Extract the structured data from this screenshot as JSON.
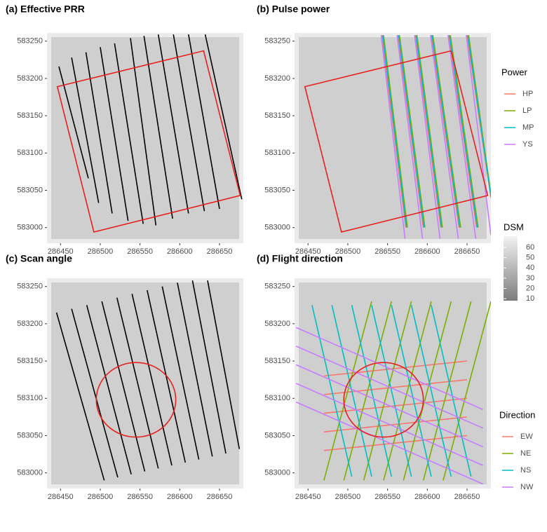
{
  "chart_data": [
    {
      "type": "line",
      "title": "(a) Effective PRR",
      "xlim": [
        286433,
        286680
      ],
      "ylim": [
        582979,
        583261
      ],
      "xticks": [
        286450,
        286500,
        286550,
        286600,
        286650
      ],
      "yticks": [
        583000,
        583050,
        583100,
        583150,
        583200,
        583250
      ],
      "outline": {
        "color": "#e8201f",
        "x": [
          286446,
          286630,
          286676,
          286492,
          286446
        ],
        "y": [
          583189,
          583237,
          583043,
          582994,
          583189
        ]
      },
      "series": [
        {
          "color": "#000000",
          "x": [
            286448,
            286485,
            null,
            286464,
            286498,
            null,
            286482,
            286515,
            null,
            286500,
            286535,
            null,
            286518,
            286554,
            null,
            286538,
            286570,
            null,
            286555,
            286591,
            null,
            286573,
            286611,
            null,
            286592,
            286631,
            null,
            286611,
            286650,
            null,
            286632,
            286678
          ],
          "y": [
            583216,
            583066,
            null,
            583228,
            583033,
            null,
            583235,
            583019,
            null,
            583242,
            583009,
            null,
            583247,
            583005,
            null,
            583254,
            583003,
            null,
            583257,
            583012,
            null,
            583259,
            583019,
            null,
            583259,
            583022,
            null,
            583259,
            583025,
            null,
            583259,
            583038
          ]
        }
      ]
    },
    {
      "type": "line",
      "title": "(b) Pulse power",
      "legend_title": "Power",
      "xlim": [
        286433,
        286680
      ],
      "ylim": [
        582979,
        583261
      ],
      "xticks": [
        286450,
        286500,
        286550,
        286600,
        286650
      ],
      "yticks": [
        583000,
        583050,
        583100,
        583150,
        583200,
        583250
      ],
      "outline": {
        "color": "#e8201f",
        "x": [
          286446,
          286630,
          286676,
          286492,
          286446
        ],
        "y": [
          583189,
          583237,
          583043,
          582994,
          583189
        ]
      },
      "series": [
        {
          "name": "HP",
          "color": "#f8766d",
          "x": [
            286543,
            286573,
            null,
            286563,
            286595,
            null,
            286585,
            286617,
            null,
            286605,
            286640,
            null,
            286627,
            286662,
            null,
            286650,
            286680
          ],
          "y": [
            583258,
            583000,
            null,
            583258,
            583000,
            null,
            583258,
            583000,
            null,
            583258,
            583000,
            null,
            583258,
            583000,
            null,
            583258,
            583040
          ]
        },
        {
          "name": "LP",
          "color": "#7cae00",
          "x": [
            286545,
            286575,
            null,
            286565,
            286597,
            null,
            286587,
            286619,
            null,
            286607,
            286642,
            null,
            286629,
            286664,
            null,
            286652,
            286680
          ],
          "y": [
            583258,
            583000,
            null,
            583258,
            583000,
            null,
            583258,
            583000,
            null,
            583258,
            583000,
            null,
            583258,
            583000,
            null,
            583258,
            583045
          ]
        },
        {
          "name": "MP",
          "color": "#00bfc4",
          "x": [
            286544,
            286574,
            null,
            286564,
            286596,
            null,
            286586,
            286618,
            null,
            286606,
            286641,
            null,
            286628,
            286663,
            null,
            286651,
            286680
          ],
          "y": [
            583258,
            583000,
            null,
            583258,
            583000,
            null,
            583258,
            583000,
            null,
            583258,
            583000,
            null,
            583258,
            583000,
            null,
            583258,
            583042
          ]
        },
        {
          "name": "YS",
          "color": "#c77cff",
          "x": [
            286542,
            286572,
            null,
            286562,
            286594,
            null,
            286584,
            286616,
            null,
            286604,
            286639,
            null,
            286626,
            286661,
            null,
            286649,
            286680
          ],
          "y": [
            583258,
            582985,
            null,
            583258,
            582985,
            null,
            583258,
            582985,
            null,
            583258,
            582985,
            null,
            583258,
            582985,
            null,
            583258,
            582990
          ]
        }
      ]
    },
    {
      "type": "line",
      "title": "(c) Scan angle",
      "xlim": [
        286433,
        286680
      ],
      "ylim": [
        582979,
        583261
      ],
      "xticks": [
        286450,
        286500,
        286550,
        286600,
        286650
      ],
      "yticks": [
        583000,
        583050,
        583100,
        583150,
        583200,
        583250
      ],
      "circle": {
        "color": "#e8201f",
        "x": 286545,
        "y": 583098,
        "r": 50
      },
      "series": [
        {
          "color": "#000000",
          "x": [
            286445,
            286505,
            null,
            286464,
            286522,
            null,
            286483,
            286539,
            null,
            286502,
            286556,
            null,
            286521,
            286573,
            null,
            286540,
            286590,
            null,
            286559,
            286607,
            null,
            286578,
            286624,
            null,
            286597,
            286641,
            null,
            286616,
            286658,
            null,
            286635,
            286675
          ],
          "y": [
            583215,
            582990,
            null,
            583220,
            582994,
            null,
            583225,
            582998,
            null,
            583230,
            583002,
            null,
            583235,
            583006,
            null,
            583240,
            583010,
            null,
            583245,
            583014,
            null,
            583250,
            583018,
            null,
            583255,
            583022,
            null,
            583258,
            583026,
            null,
            583258,
            583032
          ]
        }
      ]
    },
    {
      "type": "line",
      "title": "(d) Flight direction",
      "legend_title": "Direction",
      "xlim": [
        286433,
        286680
      ],
      "ylim": [
        582979,
        583261
      ],
      "xticks": [
        286450,
        286500,
        286550,
        286600,
        286650
      ],
      "yticks": [
        583000,
        583050,
        583100,
        583150,
        583200,
        583250
      ],
      "circle": {
        "color": "#e8201f",
        "x": 286545,
        "y": 583098,
        "r": 50
      },
      "series": [
        {
          "name": "EW",
          "color": "#f8766d",
          "x": [
            286470,
            286650,
            null,
            286470,
            286650,
            null,
            286470,
            286650,
            null,
            286470,
            286650,
            null,
            286470,
            286650
          ],
          "y": [
            583030,
            583050,
            null,
            583055,
            583075,
            null,
            583080,
            583100,
            null,
            583105,
            583125,
            null,
            583130,
            583150
          ]
        },
        {
          "name": "NE",
          "color": "#7cae00",
          "x": [
            286470,
            286530,
            null,
            286495,
            286555,
            null,
            286520,
            286580,
            null,
            286545,
            286605,
            null,
            286570,
            286630,
            null,
            286595,
            286655,
            null,
            286620,
            286680
          ],
          "y": [
            582990,
            583230,
            null,
            582990,
            583230,
            null,
            582990,
            583230,
            null,
            582990,
            583230,
            null,
            582990,
            583230,
            null,
            582990,
            583230,
            null,
            582990,
            583230
          ]
        },
        {
          "name": "NS",
          "color": "#00bfc4",
          "x": [
            286455,
            286505,
            null,
            286480,
            286530,
            null,
            286505,
            286555,
            null,
            286530,
            286580,
            null,
            286555,
            286605,
            null,
            286580,
            286630,
            null,
            286605,
            286655
          ],
          "y": [
            583225,
            582995,
            null,
            583225,
            582995,
            null,
            583225,
            582995,
            null,
            583225,
            582995,
            null,
            583225,
            582995,
            null,
            583225,
            582995,
            null,
            583225,
            582995
          ]
        },
        {
          "name": "NW",
          "color": "#c77cff",
          "x": [
            286435,
            286670,
            null,
            286435,
            286670,
            null,
            286435,
            286670,
            null,
            286435,
            286670,
            null,
            286435,
            286670
          ],
          "y": [
            583195,
            583085,
            null,
            583170,
            583060,
            null,
            583145,
            583035,
            null,
            583120,
            583010,
            null,
            583095,
            582985
          ]
        }
      ]
    }
  ],
  "colorbar": {
    "title": "DSM",
    "lim": [
      8,
      71
    ],
    "ticks": [
      10,
      20,
      30,
      40,
      50,
      60
    ]
  }
}
